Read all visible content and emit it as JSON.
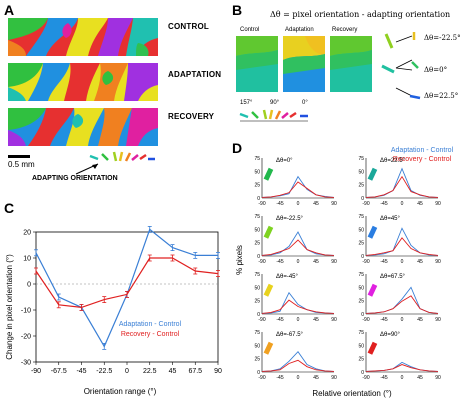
{
  "panel_a": {
    "letter": "A",
    "maps": [
      "CONTROL",
      "ADAPTATION",
      "RECOVERY"
    ],
    "scale_label": "0.5 mm",
    "adapting_label": "ADAPTING ORIENTATION"
  },
  "panel_b": {
    "letter": "B",
    "formula": "Δθ = pixel orientation - adapting orientation",
    "columns": [
      "Control",
      "Adaptation",
      "Recovery"
    ],
    "angle_ticks": [
      "157°",
      "90°",
      "0°"
    ],
    "delta_labels": [
      "Δθ=-22.5°",
      "Δθ=0°",
      "Δθ=22.5°"
    ]
  },
  "panel_c": {
    "letter": "C",
    "ylabel": "Change in pixel orientation (°)",
    "xlabel": "Orientation range (°)",
    "legend": [
      "Adaptation - Control",
      "Recovery - Control"
    ]
  },
  "panel_d": {
    "letter": "D",
    "ylabel": "% pixels",
    "xlabel": "Relative orientation (°)",
    "legend": [
      "Adaptation - Control",
      "Recovery - Control"
    ],
    "subplots": [
      {
        "title": "Δθ=0°",
        "color": "#22b84c"
      },
      {
        "title": "Δθ=22.5°",
        "color": "#1ba89a"
      },
      {
        "title": "Δθ=-22.5°",
        "color": "#7ed321"
      },
      {
        "title": "Δθ=45°",
        "color": "#2a7de1"
      },
      {
        "title": "Δθ=-45°",
        "color": "#e8d21d"
      },
      {
        "title": "Δθ=67.5°",
        "color": "#e020e0"
      },
      {
        "title": "Δθ=-67.5°",
        "color": "#f0a020"
      },
      {
        "title": "Δθ=90°",
        "color": "#e02020"
      }
    ],
    "yticks": [
      "75",
      "50",
      "25",
      "0"
    ],
    "xticks": [
      "-90",
      "-45",
      "0",
      "45",
      "90"
    ]
  },
  "colors": {
    "adaptation": "#3a7fd5",
    "recovery": "#e02020",
    "zero_line": "#888888"
  },
  "chart_data": {
    "type": "line",
    "x": [
      -90,
      -67.5,
      -45,
      -22.5,
      0,
      22.5,
      45,
      67.5,
      90
    ],
    "xlabel": "Orientation range (°)",
    "ylabel": "Change in pixel orientation (°)",
    "ylim": [
      -30,
      20
    ],
    "yticks": [
      -30,
      -20,
      -10,
      0,
      10,
      20
    ],
    "xticks": [
      "-90",
      "-67.5",
      "-45",
      "-22.5",
      "0",
      "22.5",
      "45",
      "67.5",
      "90"
    ],
    "series": [
      {
        "name": "Adaptation - Control",
        "color": "#3a7fd5",
        "values": [
          12,
          -5,
          -9,
          -24,
          -4,
          21,
          14,
          11,
          11
        ]
      },
      {
        "name": "Recovery - Control",
        "color": "#e02020",
        "values": [
          5,
          -8,
          -9,
          -6,
          -4,
          10,
          10,
          5,
          4
        ]
      }
    ]
  }
}
